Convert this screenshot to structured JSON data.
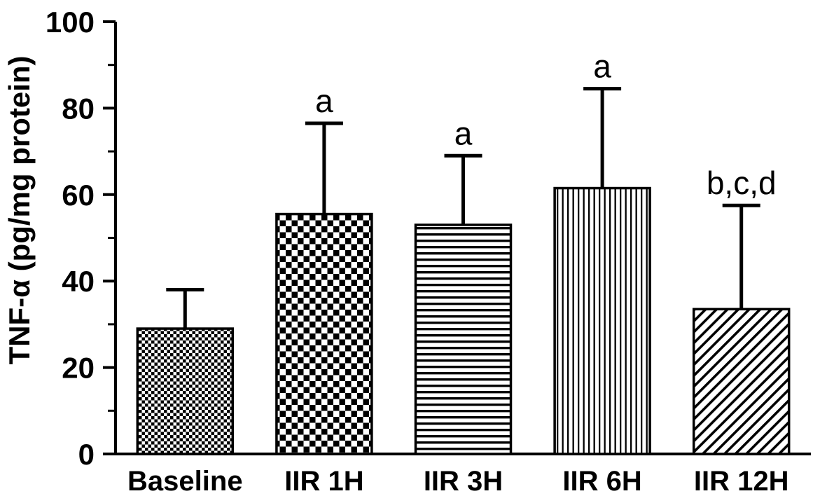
{
  "chart_data": {
    "type": "bar",
    "title": "",
    "ylabel": "TNF-α  (pg/mg protein)",
    "xlabel": "",
    "ylim": [
      0,
      100
    ],
    "yticks": [
      0,
      20,
      40,
      60,
      80,
      100
    ],
    "minor_yticks": [
      10,
      30,
      50,
      70,
      90
    ],
    "categories": [
      "Baseline",
      "IIR 1H",
      "IIR 3H",
      "IIR 6H",
      "IIR 12H"
    ],
    "values": [
      29,
      55.5,
      53,
      61.5,
      33.5
    ],
    "errors": [
      9,
      21,
      16,
      23,
      24
    ],
    "annotations": [
      "",
      "a",
      "a",
      "a",
      "b,c,d"
    ],
    "bar_patterns": [
      "checker-fine",
      "checker-coarse",
      "horizontal-lines",
      "vertical-lines",
      "diagonal-lines"
    ],
    "bar_color": "#000000",
    "background": "#ffffff",
    "grid": "off",
    "legend": "none"
  }
}
